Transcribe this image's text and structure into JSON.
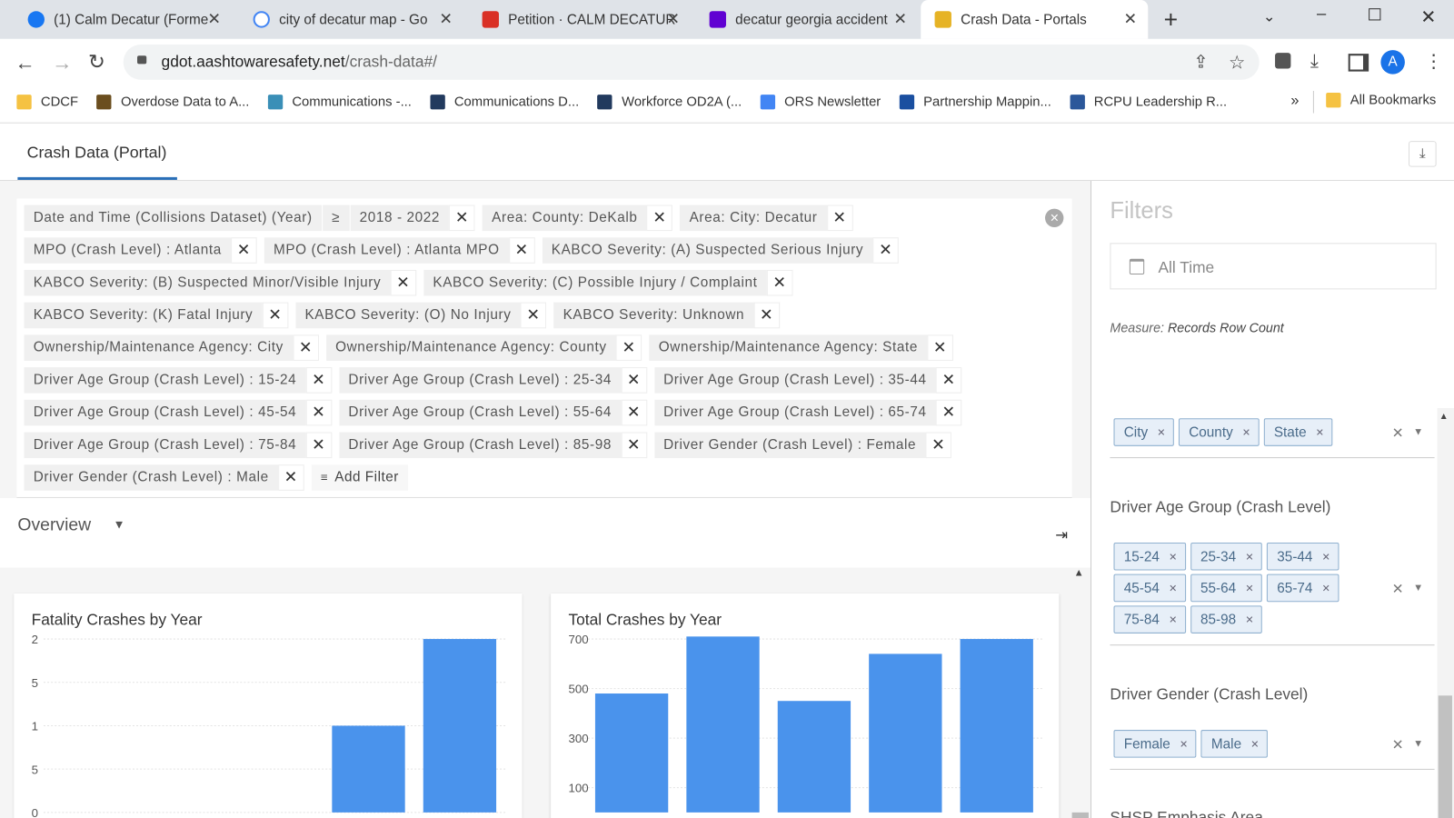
{
  "browser": {
    "tabs": [
      {
        "title": "(1) Calm Decatur (Forme"
      },
      {
        "title": "city of decatur map - Go"
      },
      {
        "title": "Petition · CALM DECATUR"
      },
      {
        "title": "decatur georgia accident"
      },
      {
        "title": "Crash Data - Portals"
      }
    ],
    "url": {
      "host": "gdot.aashtowaresafety.net",
      "path": "/crash-data#/"
    },
    "bookmarks": [
      "CDCF",
      "Overdose Data to A...",
      "Communications -...",
      "Communications D...",
      "Workforce OD2A (...",
      "ORS Newsletter",
      "Partnership Mappin...",
      "RCPU Leadership R..."
    ],
    "all_bookmarks": "All Bookmarks"
  },
  "page": {
    "tab": "Crash Data (Portal)",
    "filter_bar": {
      "rows": [
        [
          {
            "label": "Date and Time (Collisions Dataset) (Year)",
            "operator": "≥",
            "range": "2018  -  2022"
          },
          "Area: County: DeKalb",
          "Area: City: Decatur"
        ],
        [
          "MPO (Crash Level) : Atlanta",
          "MPO (Crash Level) : Atlanta MPO",
          "KABCO Severity: (A) Suspected Serious Injury"
        ],
        [
          "KABCO Severity: (B) Suspected Minor/Visible Injury",
          "KABCO Severity: (C) Possible Injury / Complaint"
        ],
        [
          "KABCO Severity: (K) Fatal Injury",
          "KABCO Severity: (O) No Injury",
          "KABCO Severity: Unknown"
        ],
        [
          "Ownership/Maintenance Agency: City",
          "Ownership/Maintenance Agency: County",
          "Ownership/Maintenance Agency: State"
        ],
        [
          "Driver Age Group (Crash Level) : 15-24",
          "Driver Age Group (Crash Level) : 25-34",
          "Driver Age Group (Crash Level) : 35-44"
        ],
        [
          "Driver Age Group (Crash Level) : 45-54",
          "Driver Age Group (Crash Level) : 55-64",
          "Driver Age Group (Crash Level) : 65-74"
        ],
        [
          "Driver Age Group (Crash Level) : 75-84",
          "Driver Age Group (Crash Level) : 85-98",
          "Driver Gender (Crash Level) : Female"
        ],
        [
          "Driver Gender (Crash Level) : Male"
        ]
      ]
    },
    "add_filter": "Add Filter",
    "view": "Overview"
  },
  "charts": [
    {
      "type": "bar",
      "title": "Fatality Crashes by Year",
      "values": [
        0,
        0,
        0,
        1,
        2
      ],
      "color": "#4a93ec",
      "ylim": [
        0,
        2
      ],
      "yticks": [
        0,
        {
          "value": 0.5,
          "label": "5"
        },
        1,
        {
          "value": 1.5,
          "label": "5"
        },
        2
      ]
    },
    {
      "type": "bar",
      "title": "Total Crashes by Year",
      "values": [
        480,
        710,
        450,
        640,
        700
      ],
      "color": "#4a93ec",
      "ylim": [
        0,
        700
      ],
      "yticks": [
        100,
        300,
        500,
        700
      ]
    }
  ],
  "filters_panel": {
    "title": "Filters",
    "date": "All Time",
    "measure_label": "Measure:",
    "measure": "Records Row Count",
    "sections": [
      {
        "label": null,
        "rows": [
          [
            "City",
            "County",
            "State"
          ]
        ]
      },
      {
        "label": "Driver Age Group (Crash Level)",
        "rows": [
          [
            "15-24",
            "25-34",
            "35-44"
          ],
          [
            "45-54",
            "55-64",
            "65-74"
          ],
          [
            "75-84",
            "85-98"
          ]
        ]
      },
      {
        "label": "Driver Gender (Crash Level)",
        "rows": [
          [
            "Female",
            "Male"
          ]
        ]
      }
    ],
    "next_section": "SHSP Emphasis Area"
  }
}
